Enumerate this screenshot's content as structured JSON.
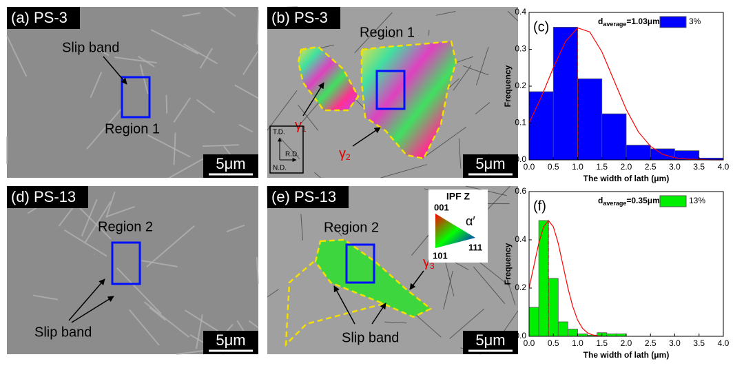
{
  "panels": [
    {
      "label": "(a) PS-3",
      "annotations": [
        "Slip band",
        "Region 1"
      ],
      "scale_bar": "5μm"
    },
    {
      "label": "(b) PS-3",
      "annotations": [
        "Region 1"
      ],
      "phases": [
        {
          "symbol": "γ",
          "sub": "1"
        },
        {
          "symbol": "γ",
          "sub": "2"
        }
      ],
      "axes": [
        "T.D.",
        "R.D.",
        "N.D."
      ],
      "scale_bar": "5μm"
    },
    {
      "label": "(d) PS-13",
      "annotations": [
        "Region 2",
        "Slip band"
      ],
      "scale_bar": "5μm"
    },
    {
      "label": "(e) PS-13",
      "annotations": [
        "Region 2",
        "Slip band"
      ],
      "phases": [
        {
          "symbol": "γ",
          "sub": "3"
        }
      ],
      "ipf_legend": {
        "title": "IPF Z",
        "corners": [
          "001",
          "111",
          "101"
        ],
        "phase": "α′"
      },
      "scale_bar": "5μm"
    }
  ],
  "chart_data": [
    {
      "type": "histogram",
      "panel_label": "(c)",
      "legend_text": {
        "prefix": "d",
        "sub": "average",
        "value": "=1.03μm"
      },
      "x_label": "The width of lath (μm)",
      "y_label": "Frequency",
      "bins": [
        0,
        0.5,
        1,
        1.5,
        2,
        2.5,
        3,
        3.5,
        4
      ],
      "series": [
        {
          "name": "3%",
          "color": "#0000ff",
          "values": [
            0.185,
            0.36,
            0.22,
            0.125,
            0.04,
            0.03,
            0.025,
            0.005
          ]
        }
      ],
      "fit": {
        "color": "#ff0000",
        "x": [
          0,
          0.25,
          0.5,
          0.75,
          1,
          1.25,
          1.5,
          1.75,
          2,
          2.25,
          2.5,
          2.75,
          3,
          3.25,
          3.5,
          3.75,
          4
        ],
        "values": [
          0.1,
          0.17,
          0.25,
          0.321,
          0.358,
          0.347,
          0.293,
          0.215,
          0.137,
          0.076,
          0.037,
          0.015,
          0.006,
          0.002,
          0.001,
          0,
          0
        ]
      },
      "xlim": [
        0,
        4
      ],
      "xticks": [
        {
          "value": 0,
          "label": "0.0"
        },
        0.5,
        {
          "value": 1,
          "label": "1.0"
        },
        1.5,
        {
          "value": 2,
          "label": "2.0"
        },
        2.5,
        {
          "value": 3,
          "label": "3.0"
        },
        3.5,
        {
          "value": 4,
          "label": "4.0"
        }
      ],
      "ylim": [
        0,
        0.4
      ],
      "yticks": [
        {
          "value": 0,
          "label": "0.0"
        },
        0.1,
        0.2,
        0.3,
        0.4
      ]
    },
    {
      "type": "histogram",
      "panel_label": "(f)",
      "legend_text": {
        "prefix": "d",
        "sub": "average",
        "value": "=0.35μm"
      },
      "x_label": "The width of lath (μm)",
      "y_label": "Frequency",
      "bins": [
        0,
        0.2,
        0.4,
        0.6,
        0.8,
        1,
        1.2,
        1.4,
        1.6,
        1.8,
        2
      ],
      "series": [
        {
          "name": "13%",
          "color": "#00ee00",
          "values": [
            0.12,
            0.48,
            0.24,
            0.06,
            0.03,
            0.01,
            0.005,
            0.015,
            0.01,
            0.01
          ]
        }
      ],
      "fit": {
        "color": "#ff0000",
        "x": [
          0,
          0.1,
          0.2,
          0.3,
          0.4,
          0.5,
          0.6,
          0.7,
          0.8,
          0.9,
          1,
          1.1,
          1.2,
          1.3,
          1.4,
          1.5
        ],
        "values": [
          0.2,
          0.293,
          0.386,
          0.454,
          0.48,
          0.454,
          0.386,
          0.293,
          0.2,
          0.123,
          0.067,
          0.033,
          0.015,
          0.006,
          0.002,
          0.001
        ]
      },
      "xlim": [
        0,
        4
      ],
      "xticks": [
        {
          "value": 0,
          "label": "0.0"
        },
        0.5,
        {
          "value": 1,
          "label": "1.0"
        },
        1.5,
        {
          "value": 2,
          "label": "2.0"
        },
        2.5,
        {
          "value": 3,
          "label": "3.0"
        },
        3.5,
        {
          "value": 4,
          "label": "4.0"
        }
      ],
      "ylim": [
        0,
        0.6
      ],
      "yticks": [
        {
          "value": 0,
          "label": "0.0"
        },
        0.2,
        0.4,
        0.6
      ]
    }
  ]
}
